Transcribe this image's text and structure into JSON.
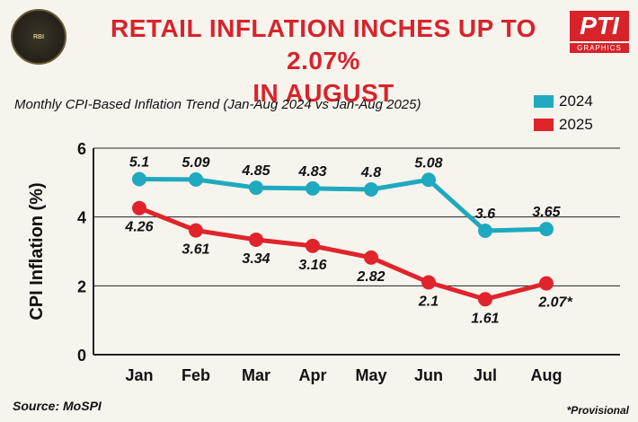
{
  "header": {
    "title_line1": "RETAIL INFLATION INCHES UP TO 2.07%",
    "title_line2": "IN AUGUST",
    "logo_text": "RBI",
    "brand": "PTI",
    "brand_sub": "GRAPHICS"
  },
  "chart_data": {
    "type": "line",
    "title": "Monthly CPI-Based Inflation Trend (Jan-Aug 2024 vs Jan-Aug 2025)",
    "xlabel": "",
    "ylabel": "CPI Inflation (%)",
    "ylim": [
      0,
      6
    ],
    "yticks": [
      0,
      2,
      4,
      6
    ],
    "categories": [
      "Jan",
      "Feb",
      "Mar",
      "Apr",
      "May",
      "Jun",
      "Jul",
      "Aug"
    ],
    "series": [
      {
        "name": "2024",
        "color": "#1fa9bf",
        "values": [
          5.1,
          5.09,
          4.85,
          4.83,
          4.8,
          5.08,
          3.6,
          3.65
        ],
        "labels": [
          "5.1",
          "5.09",
          "4.85",
          "4.83",
          "4.8",
          "5.08",
          "3.6",
          "3.65"
        ]
      },
      {
        "name": "2025",
        "color": "#e0242c",
        "values": [
          4.26,
          3.61,
          3.34,
          3.16,
          2.82,
          2.1,
          1.61,
          2.07
        ],
        "labels": [
          "4.26",
          "3.61",
          "3.34",
          "3.16",
          "2.82",
          "2.1",
          "1.61",
          "2.07*"
        ]
      }
    ],
    "legend_position": "top-right",
    "grid": true
  },
  "footer": {
    "source": "Source: MoSPI",
    "note": "*Provisional"
  }
}
